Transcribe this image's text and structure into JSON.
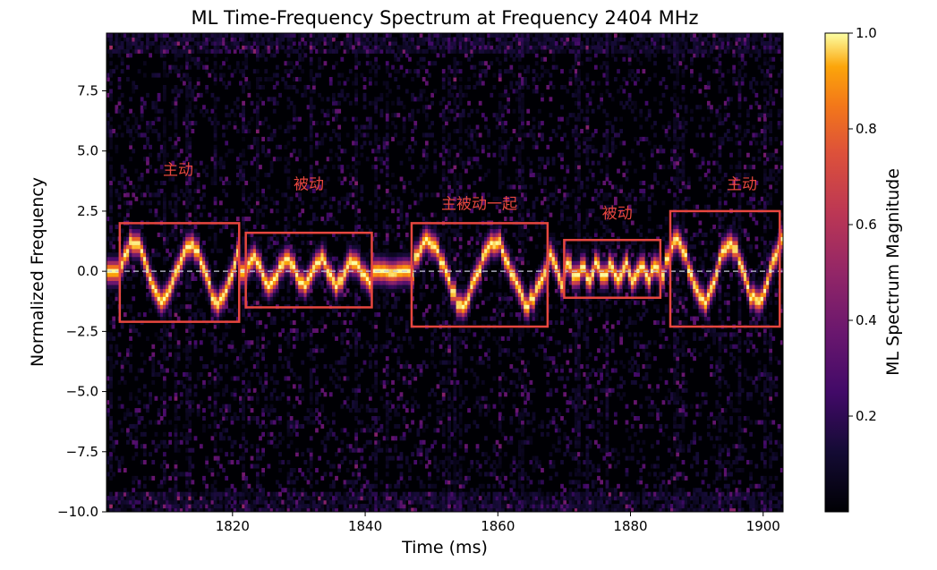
{
  "chart_data": {
    "type": "heatmap",
    "title": "ML Time-Frequency Spectrum at Frequency 2404 MHz",
    "xlabel": "Time (ms)",
    "ylabel": "Normalized Frequency",
    "xlim": [
      1801,
      1903
    ],
    "ylim": [
      -10,
      9.9
    ],
    "x_ticks": [
      1820,
      1840,
      1860,
      1880,
      1900
    ],
    "y_ticks": [
      7.5,
      5.0,
      2.5,
      0.0,
      -2.5,
      -5.0,
      -7.5,
      -10.0
    ],
    "x_tick_labels": [
      "1820",
      "1840",
      "1860",
      "1880",
      "1900"
    ],
    "y_tick_labels": [
      "7.5",
      "5.0",
      "2.5",
      "0.0",
      "−2.5",
      "−5.0",
      "−7.5",
      "−10.0"
    ],
    "reference_line": {
      "y": 0.0,
      "style": "dashed",
      "color": "#c8c8dc"
    },
    "colormap": "inferno",
    "colorbar": {
      "label": "ML Spectrum Magnitude",
      "ticks": [
        0.2,
        0.4,
        0.6,
        0.8,
        1.0
      ],
      "tick_labels": [
        "0.2",
        "0.4",
        "0.6",
        "0.8",
        "1.0"
      ],
      "range": [
        0.0,
        1.0
      ]
    },
    "grid": false,
    "ridge_segments": [
      {
        "x0": 1803,
        "x1": 1821,
        "amplitude": 1.2,
        "period": 8.5,
        "jitter": 0.35
      },
      {
        "x0": 1822,
        "x1": 1841,
        "amplitude": 0.5,
        "period": 5.0,
        "jitter": 0.3
      },
      {
        "x0": 1841,
        "x1": 1847,
        "amplitude": 0.05,
        "period": 4.0,
        "jitter": 0.05
      },
      {
        "x0": 1847,
        "x1": 1867,
        "amplitude": 1.3,
        "period": 10.0,
        "jitter": 0.4
      },
      {
        "x0": 1867,
        "x1": 1870,
        "amplitude": 0.6,
        "period": 4.0,
        "jitter": 0.3
      },
      {
        "x0": 1870,
        "x1": 1885,
        "amplitude": 0.3,
        "period": 2.2,
        "jitter": 0.3
      },
      {
        "x0": 1885,
        "x1": 1903,
        "amplitude": 1.2,
        "period": 8.0,
        "jitter": 0.35
      }
    ],
    "annotations": [
      {
        "text": "主动",
        "x": 1811.8,
        "y": 4.0,
        "box": {
          "x0": 1803,
          "x1": 1821,
          "y0": -2.1,
          "y1": 2.0
        }
      },
      {
        "text": "被动",
        "x": 1831.5,
        "y": 3.4,
        "box": {
          "x0": 1822,
          "x1": 1841,
          "y0": -1.5,
          "y1": 1.6
        }
      },
      {
        "text": "主被动一起",
        "x": 1857.2,
        "y": 2.6,
        "box": {
          "x0": 1847,
          "x1": 1867.5,
          "y0": -2.3,
          "y1": 2.0
        }
      },
      {
        "text": "被动",
        "x": 1878.0,
        "y": 2.2,
        "box": {
          "x0": 1870,
          "x1": 1884.5,
          "y0": -1.1,
          "y1": 1.3
        }
      },
      {
        "text": "主动",
        "x": 1896.8,
        "y": 3.4,
        "box": {
          "x0": 1886,
          "x1": 1902.5,
          "y0": -2.3,
          "y1": 2.5
        }
      }
    ]
  }
}
